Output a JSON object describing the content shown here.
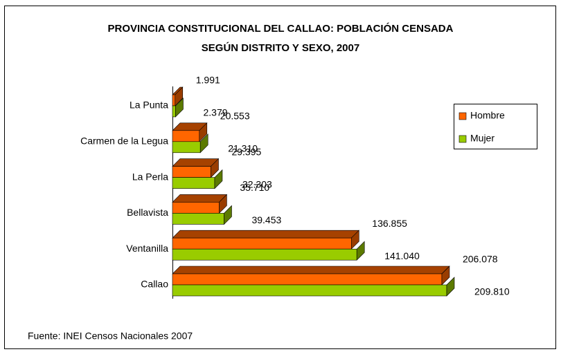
{
  "chart_data": {
    "type": "bar3d_horizontal",
    "title": [
      "PROVINCIA CONSTITUCIONAL DEL CALLAO: POBLACIÓN CENSADA",
      "SEGÚN DISTRITO Y SEXO, 2007"
    ],
    "categories": [
      "La Punta",
      "Carmen de la Legua",
      "La Perla",
      "Bellavista",
      "Ventanilla",
      "Callao"
    ],
    "series": [
      {
        "name": "Hombre",
        "color": "#ff6600",
        "values": [
          1991,
          20553,
          29395,
          35710,
          136855,
          206078
        ],
        "value_labels": [
          "1.991",
          "20.553",
          "29.395",
          "35.710",
          "136.855",
          "206.078"
        ]
      },
      {
        "name": "Mujer",
        "color": "#99cc00",
        "values": [
          2379,
          21310,
          32303,
          39453,
          141040,
          209810
        ],
        "value_labels": [
          "2.379",
          "21.310",
          "32.303",
          "39.453",
          "141.040",
          "209.810"
        ]
      }
    ],
    "legend": "right",
    "source": "Fuente: INEI Censos Nacionales 2007"
  }
}
